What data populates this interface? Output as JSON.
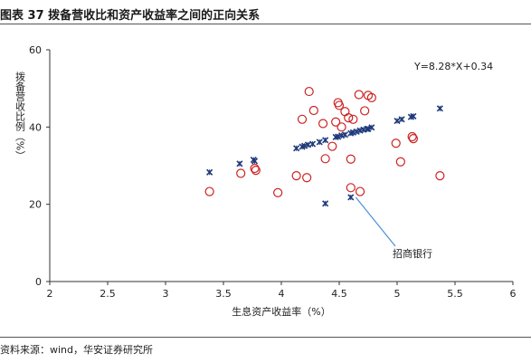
{
  "header": {
    "title": "图表 37  拨备营收比和资产收益率之间的正向关系"
  },
  "footer": {
    "source": "资料来源：wind，华安证券研究所"
  },
  "chart_data": {
    "type": "scatter",
    "xlabel": "生息资产收益率（%）",
    "ylabel": "拨备营收比例（%）",
    "xlim": [
      2,
      6
    ],
    "ylim": [
      0,
      60
    ],
    "xticks": [
      "2",
      "2.5",
      "3",
      "3.5",
      "4",
      "4.5",
      "5",
      "5.5",
      "6"
    ],
    "yticks": [
      "0",
      "20",
      "40",
      "60"
    ],
    "grid": false,
    "colors": {
      "fitted": "#1f3a7a",
      "actual": "#cc2222",
      "annotation_line": "#4a90d9"
    },
    "equation": "Y=8.28*X+0.34",
    "annotation": {
      "text": "招商银行",
      "point": [
        4.62,
        22.5
      ]
    },
    "series": [
      {
        "marker": "x",
        "x": [
          3.38,
          3.64,
          3.76,
          3.77,
          4.13,
          4.18,
          4.2,
          4.23,
          4.27,
          4.33,
          4.38,
          4.47,
          4.49,
          4.52,
          4.55,
          4.6,
          4.62,
          4.65,
          4.68,
          4.71,
          4.74,
          4.75,
          4.78,
          5.0,
          5.04,
          5.12,
          5.14,
          5.37,
          4.38,
          4.6
        ],
        "y": [
          28.3,
          30.5,
          31.5,
          31.2,
          34.5,
          34.9,
          35.1,
          35.4,
          35.6,
          36.1,
          36.6,
          37.4,
          37.5,
          37.8,
          38.0,
          38.4,
          38.6,
          38.8,
          39.1,
          39.3,
          39.5,
          39.5,
          39.9,
          41.6,
          42.0,
          42.6,
          42.8,
          44.8,
          20.2,
          21.8
        ]
      },
      {
        "marker": "circle",
        "x": [
          3.38,
          3.65,
          3.77,
          3.78,
          3.97,
          4.13,
          4.18,
          4.22,
          4.24,
          4.28,
          4.36,
          4.38,
          4.44,
          4.47,
          4.49,
          4.5,
          4.52,
          4.55,
          4.58,
          4.6,
          4.6,
          4.62,
          4.67,
          4.68,
          4.72,
          4.75,
          4.78,
          4.99,
          5.03,
          5.13,
          5.14,
          5.37
        ],
        "y": [
          23.3,
          28.0,
          29.3,
          28.8,
          23.0,
          27.4,
          42.0,
          26.9,
          49.2,
          44.3,
          40.9,
          31.8,
          35.0,
          41.3,
          46.3,
          45.6,
          40.0,
          44.0,
          42.4,
          31.7,
          24.3,
          42.0,
          48.4,
          23.3,
          44.2,
          48.2,
          47.6,
          35.8,
          31.0,
          37.5,
          37.0,
          27.4
        ]
      }
    ]
  }
}
